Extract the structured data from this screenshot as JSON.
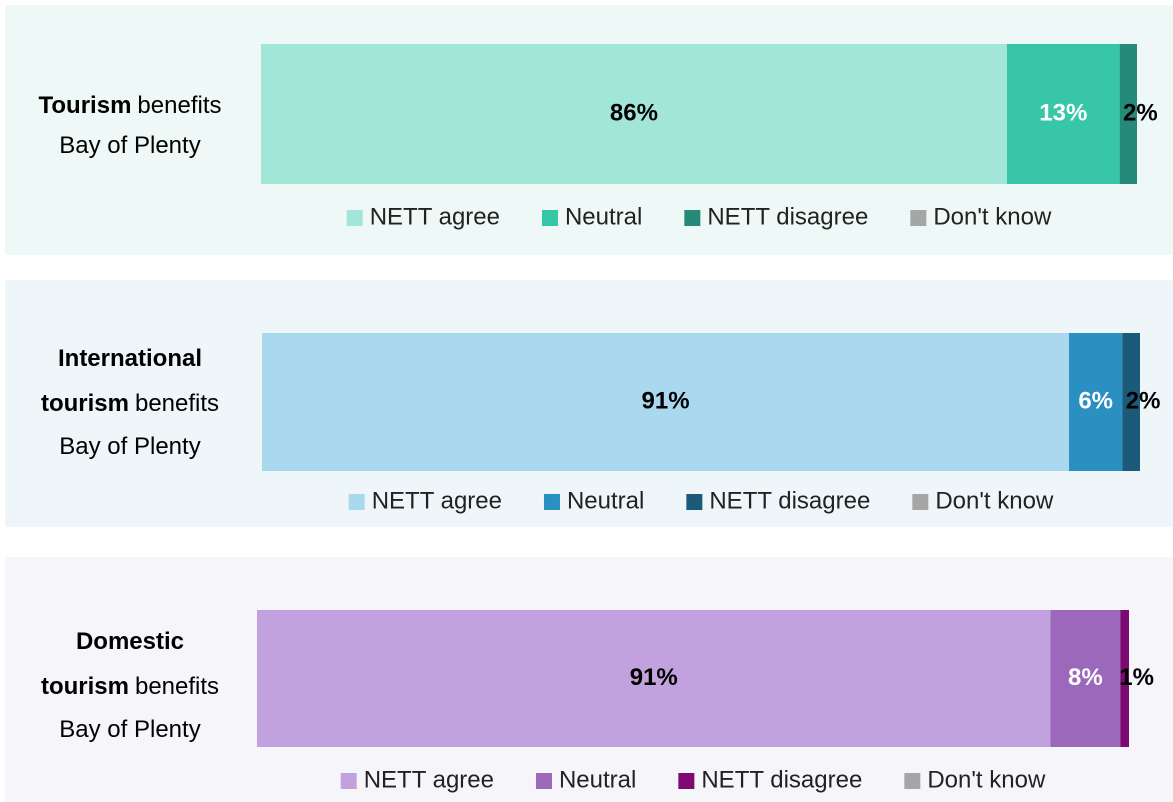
{
  "chart_data": [
    {
      "type": "stacked-bar",
      "label_lines": [
        {
          "bold": "Tourism",
          "text": "benefits"
        },
        {
          "text": "Bay of Plenty"
        }
      ],
      "background": "#eef8f6",
      "series": [
        {
          "name": "NETT agree",
          "color": "#a2e6d8",
          "label_color": "#000000",
          "values": [
            86
          ],
          "value_labels": [
            "86%"
          ]
        },
        {
          "name": "Neutral",
          "color": "#38c6a8",
          "label_color": "#ffffff",
          "values": [
            13
          ],
          "value_labels": [
            "13%"
          ]
        },
        {
          "name": "NETT disagree",
          "color": "#268a78",
          "label_color": "#000000",
          "values": [
            2
          ],
          "value_labels": [
            "2%"
          ]
        },
        {
          "name": "Don't know",
          "color": "#a6a6a6",
          "values": [
            0
          ]
        }
      ]
    },
    {
      "type": "stacked-bar",
      "label_lines": [
        {
          "bold": "International"
        },
        {
          "bold": "tourism",
          "text": "benefits"
        },
        {
          "text": "Bay of Plenty"
        }
      ],
      "background": "#eef6fa",
      "series": [
        {
          "name": "NETT agree",
          "color": "#aad8ef",
          "label_color": "#000000",
          "values": [
            91
          ],
          "value_labels": [
            "91%"
          ]
        },
        {
          "name": "Neutral",
          "color": "#2a8fc1",
          "label_color": "#ffffff",
          "values": [
            6
          ],
          "value_labels": [
            "6%"
          ]
        },
        {
          "name": "NETT disagree",
          "color": "#1b5a78",
          "label_color": "#000000",
          "values": [
            2
          ],
          "value_labels": [
            "2%"
          ]
        },
        {
          "name": "Don't know",
          "color": "#a6a6a6",
          "values": [
            0
          ]
        }
      ]
    },
    {
      "type": "stacked-bar",
      "label_lines": [
        {
          "bold": "Domestic"
        },
        {
          "bold": "tourism",
          "text": "benefits"
        },
        {
          "text": "Bay of Plenty"
        }
      ],
      "background": "#f6f5fa",
      "series": [
        {
          "name": "NETT agree",
          "color": "#c1a2de",
          "label_color": "#000000",
          "values": [
            91
          ],
          "value_labels": [
            "91%"
          ]
        },
        {
          "name": "Neutral",
          "color": "#9b68bb",
          "label_color": "#ffffff",
          "values": [
            8
          ],
          "value_labels": [
            "8%"
          ]
        },
        {
          "name": "NETT disagree",
          "color": "#7c0a72",
          "label_color": "#000000",
          "values": [
            1
          ],
          "value_labels": [
            "1%"
          ]
        },
        {
          "name": "Don't know",
          "color": "#a6a6a6",
          "values": [
            0
          ]
        }
      ]
    }
  ]
}
